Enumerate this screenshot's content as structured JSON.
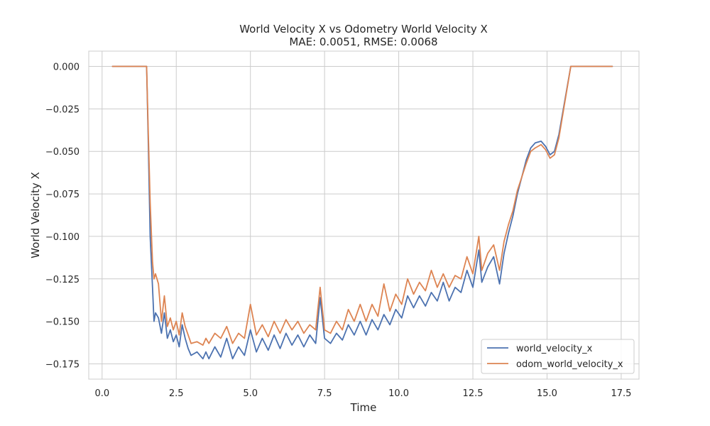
{
  "chart_data": {
    "type": "line",
    "title": "World Velocity X vs Odometry World Velocity X",
    "subtitle": "MAE: 0.0051, RMSE: 0.0068",
    "xlabel": "Time",
    "ylabel": "World Velocity X",
    "xlim": [
      -0.45,
      18.1
    ],
    "ylim": [
      -0.184,
      0.009
    ],
    "xticks": [
      0.0,
      2.5,
      5.0,
      7.5,
      10.0,
      12.5,
      15.0,
      17.5
    ],
    "xtick_labels": [
      "0.0",
      "2.5",
      "5.0",
      "7.5",
      "10.0",
      "12.5",
      "15.0",
      "17.5"
    ],
    "yticks": [
      0.0,
      -0.025,
      -0.05,
      -0.075,
      -0.1,
      -0.125,
      -0.15,
      -0.175
    ],
    "ytick_labels": [
      "0.000",
      "−0.025",
      "−0.050",
      "−0.075",
      "−0.100",
      "−0.125",
      "−0.150",
      "−0.175"
    ],
    "grid": true,
    "legend_position": "lower-right",
    "series": [
      {
        "name": "world_velocity_x",
        "color": "#4c72b0",
        "points": [
          [
            0.35,
            0.0
          ],
          [
            1.5,
            0.0
          ],
          [
            1.55,
            -0.04
          ],
          [
            1.62,
            -0.1
          ],
          [
            1.7,
            -0.13
          ],
          [
            1.75,
            -0.15
          ],
          [
            1.8,
            -0.145
          ],
          [
            1.9,
            -0.148
          ],
          [
            2.0,
            -0.157
          ],
          [
            2.1,
            -0.145
          ],
          [
            2.2,
            -0.16
          ],
          [
            2.3,
            -0.155
          ],
          [
            2.4,
            -0.162
          ],
          [
            2.5,
            -0.158
          ],
          [
            2.6,
            -0.165
          ],
          [
            2.7,
            -0.152
          ],
          [
            2.8,
            -0.16
          ],
          [
            2.9,
            -0.166
          ],
          [
            3.0,
            -0.17
          ],
          [
            3.2,
            -0.168
          ],
          [
            3.4,
            -0.172
          ],
          [
            3.5,
            -0.168
          ],
          [
            3.6,
            -0.172
          ],
          [
            3.8,
            -0.165
          ],
          [
            4.0,
            -0.171
          ],
          [
            4.2,
            -0.16
          ],
          [
            4.4,
            -0.172
          ],
          [
            4.6,
            -0.165
          ],
          [
            4.8,
            -0.17
          ],
          [
            5.0,
            -0.155
          ],
          [
            5.2,
            -0.168
          ],
          [
            5.4,
            -0.16
          ],
          [
            5.6,
            -0.167
          ],
          [
            5.8,
            -0.158
          ],
          [
            6.0,
            -0.166
          ],
          [
            6.2,
            -0.157
          ],
          [
            6.4,
            -0.164
          ],
          [
            6.6,
            -0.158
          ],
          [
            6.8,
            -0.165
          ],
          [
            7.0,
            -0.158
          ],
          [
            7.2,
            -0.163
          ],
          [
            7.35,
            -0.136
          ],
          [
            7.5,
            -0.16
          ],
          [
            7.7,
            -0.163
          ],
          [
            7.9,
            -0.157
          ],
          [
            8.1,
            -0.161
          ],
          [
            8.3,
            -0.152
          ],
          [
            8.5,
            -0.158
          ],
          [
            8.7,
            -0.15
          ],
          [
            8.9,
            -0.158
          ],
          [
            9.1,
            -0.149
          ],
          [
            9.3,
            -0.155
          ],
          [
            9.5,
            -0.146
          ],
          [
            9.7,
            -0.152
          ],
          [
            9.9,
            -0.143
          ],
          [
            10.1,
            -0.148
          ],
          [
            10.3,
            -0.135
          ],
          [
            10.5,
            -0.142
          ],
          [
            10.7,
            -0.135
          ],
          [
            10.9,
            -0.141
          ],
          [
            11.1,
            -0.133
          ],
          [
            11.3,
            -0.138
          ],
          [
            11.5,
            -0.127
          ],
          [
            11.7,
            -0.138
          ],
          [
            11.9,
            -0.13
          ],
          [
            12.1,
            -0.133
          ],
          [
            12.3,
            -0.12
          ],
          [
            12.5,
            -0.13
          ],
          [
            12.7,
            -0.108
          ],
          [
            12.8,
            -0.127
          ],
          [
            13.0,
            -0.118
          ],
          [
            13.2,
            -0.112
          ],
          [
            13.4,
            -0.128
          ],
          [
            13.55,
            -0.11
          ],
          [
            13.7,
            -0.098
          ],
          [
            13.85,
            -0.088
          ],
          [
            14.0,
            -0.075
          ],
          [
            14.15,
            -0.065
          ],
          [
            14.3,
            -0.055
          ],
          [
            14.45,
            -0.048
          ],
          [
            14.6,
            -0.045
          ],
          [
            14.8,
            -0.044
          ],
          [
            14.95,
            -0.047
          ],
          [
            15.1,
            -0.052
          ],
          [
            15.25,
            -0.05
          ],
          [
            15.4,
            -0.04
          ],
          [
            15.8,
            0.0
          ],
          [
            17.2,
            0.0
          ]
        ]
      },
      {
        "name": "odom_world_velocity_x",
        "color": "#dd8452",
        "points": [
          [
            0.35,
            0.0
          ],
          [
            1.5,
            0.0
          ],
          [
            1.55,
            -0.035
          ],
          [
            1.62,
            -0.08
          ],
          [
            1.7,
            -0.115
          ],
          [
            1.75,
            -0.125
          ],
          [
            1.8,
            -0.122
          ],
          [
            1.9,
            -0.128
          ],
          [
            2.0,
            -0.15
          ],
          [
            2.1,
            -0.135
          ],
          [
            2.2,
            -0.153
          ],
          [
            2.3,
            -0.148
          ],
          [
            2.4,
            -0.155
          ],
          [
            2.5,
            -0.15
          ],
          [
            2.6,
            -0.158
          ],
          [
            2.7,
            -0.145
          ],
          [
            2.8,
            -0.153
          ],
          [
            2.9,
            -0.158
          ],
          [
            3.0,
            -0.163
          ],
          [
            3.2,
            -0.162
          ],
          [
            3.4,
            -0.164
          ],
          [
            3.5,
            -0.16
          ],
          [
            3.6,
            -0.163
          ],
          [
            3.8,
            -0.157
          ],
          [
            4.0,
            -0.16
          ],
          [
            4.2,
            -0.153
          ],
          [
            4.4,
            -0.163
          ],
          [
            4.6,
            -0.157
          ],
          [
            4.8,
            -0.16
          ],
          [
            5.0,
            -0.14
          ],
          [
            5.2,
            -0.158
          ],
          [
            5.4,
            -0.152
          ],
          [
            5.6,
            -0.159
          ],
          [
            5.8,
            -0.15
          ],
          [
            6.0,
            -0.157
          ],
          [
            6.2,
            -0.149
          ],
          [
            6.4,
            -0.155
          ],
          [
            6.6,
            -0.15
          ],
          [
            6.8,
            -0.157
          ],
          [
            7.0,
            -0.152
          ],
          [
            7.2,
            -0.155
          ],
          [
            7.35,
            -0.13
          ],
          [
            7.5,
            -0.155
          ],
          [
            7.7,
            -0.157
          ],
          [
            7.9,
            -0.15
          ],
          [
            8.1,
            -0.155
          ],
          [
            8.3,
            -0.143
          ],
          [
            8.5,
            -0.15
          ],
          [
            8.7,
            -0.14
          ],
          [
            8.9,
            -0.15
          ],
          [
            9.1,
            -0.14
          ],
          [
            9.3,
            -0.147
          ],
          [
            9.5,
            -0.128
          ],
          [
            9.7,
            -0.144
          ],
          [
            9.9,
            -0.134
          ],
          [
            10.1,
            -0.14
          ],
          [
            10.3,
            -0.125
          ],
          [
            10.5,
            -0.134
          ],
          [
            10.7,
            -0.127
          ],
          [
            10.9,
            -0.132
          ],
          [
            11.1,
            -0.12
          ],
          [
            11.3,
            -0.13
          ],
          [
            11.5,
            -0.122
          ],
          [
            11.7,
            -0.13
          ],
          [
            11.9,
            -0.123
          ],
          [
            12.1,
            -0.125
          ],
          [
            12.3,
            -0.112
          ],
          [
            12.5,
            -0.122
          ],
          [
            12.7,
            -0.1
          ],
          [
            12.8,
            -0.12
          ],
          [
            13.0,
            -0.11
          ],
          [
            13.2,
            -0.105
          ],
          [
            13.4,
            -0.12
          ],
          [
            13.55,
            -0.103
          ],
          [
            13.7,
            -0.093
          ],
          [
            13.85,
            -0.085
          ],
          [
            14.0,
            -0.073
          ],
          [
            14.15,
            -0.065
          ],
          [
            14.3,
            -0.057
          ],
          [
            14.45,
            -0.05
          ],
          [
            14.6,
            -0.048
          ],
          [
            14.8,
            -0.046
          ],
          [
            14.95,
            -0.049
          ],
          [
            15.1,
            -0.054
          ],
          [
            15.25,
            -0.052
          ],
          [
            15.4,
            -0.042
          ],
          [
            15.8,
            0.0
          ],
          [
            17.2,
            0.0
          ]
        ]
      }
    ]
  }
}
